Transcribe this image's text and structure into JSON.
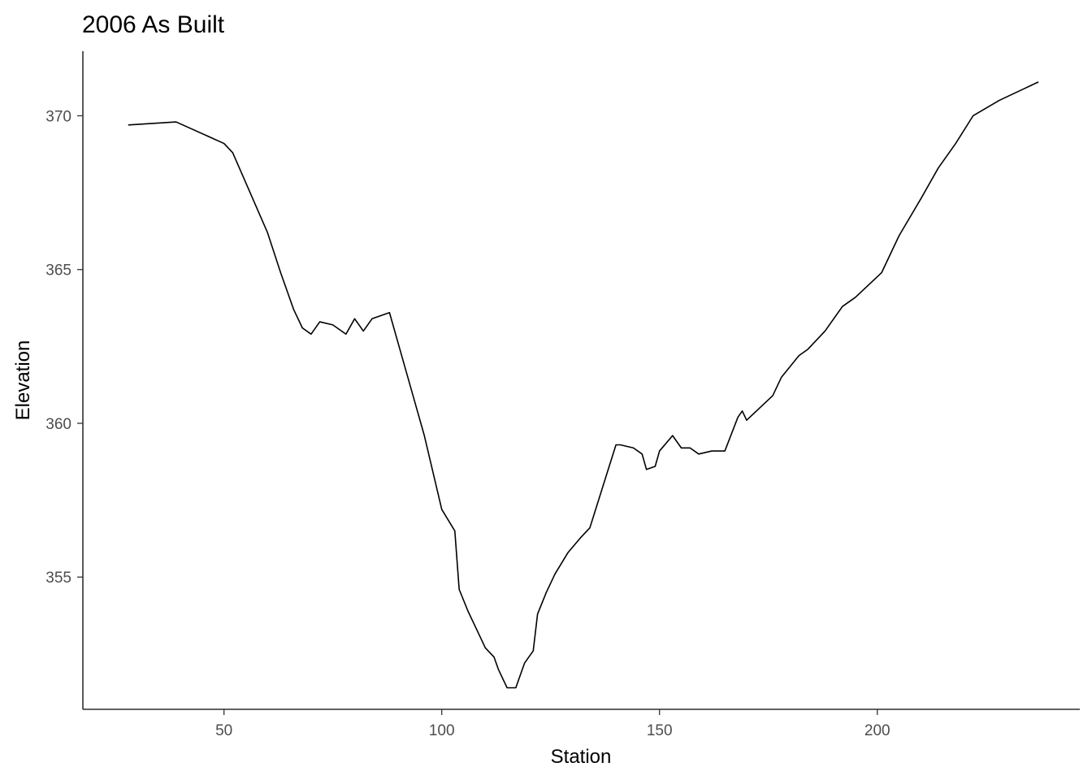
{
  "chart_data": {
    "type": "line",
    "title": "2006 As Built",
    "xlabel": "Station",
    "ylabel": "Elevation",
    "xlim": [
      17.6,
      246.5
    ],
    "ylim": [
      350.7,
      372.1
    ],
    "xticks": [
      50,
      100,
      150,
      200
    ],
    "yticks": [
      355,
      360,
      365,
      370
    ],
    "grid": false,
    "legend": "none",
    "line_color": "#000000",
    "series": [
      {
        "x": [
          28,
          39,
          50,
          52,
          56,
          60,
          63,
          66,
          68,
          70,
          72,
          75,
          78,
          80,
          82,
          84,
          88,
          92,
          96,
          98,
          100,
          103,
          104,
          106,
          108,
          110,
          112,
          113,
          115,
          117,
          119,
          121,
          122,
          124,
          126,
          129,
          132,
          134,
          136,
          138,
          140,
          141,
          144,
          146,
          147,
          149,
          150,
          153,
          155,
          157,
          159,
          162,
          165,
          168,
          169,
          170,
          173,
          176,
          178,
          182,
          184,
          188,
          192,
          195,
          198,
          201,
          205,
          210,
          214,
          218,
          222,
          228,
          234,
          237
        ],
        "y": [
          369.7,
          369.8,
          369.1,
          368.8,
          367.5,
          366.2,
          364.9,
          363.7,
          363.1,
          362.9,
          363.3,
          363.2,
          362.9,
          363.4,
          363.0,
          363.4,
          363.6,
          361.6,
          359.6,
          358.4,
          357.2,
          356.5,
          354.6,
          353.9,
          353.3,
          352.7,
          352.4,
          352.0,
          351.4,
          351.4,
          352.2,
          352.6,
          353.8,
          354.5,
          355.1,
          355.8,
          356.3,
          356.6,
          357.5,
          358.4,
          359.3,
          359.3,
          359.2,
          359.0,
          358.5,
          358.6,
          359.1,
          359.6,
          359.2,
          359.2,
          359.0,
          359.1,
          359.1,
          360.2,
          360.4,
          360.1,
          360.5,
          360.9,
          361.5,
          362.2,
          362.4,
          363.0,
          363.8,
          364.1,
          364.5,
          364.9,
          366.1,
          367.3,
          368.3,
          369.1,
          370.0,
          370.5,
          370.9,
          371.1
        ]
      }
    ]
  }
}
